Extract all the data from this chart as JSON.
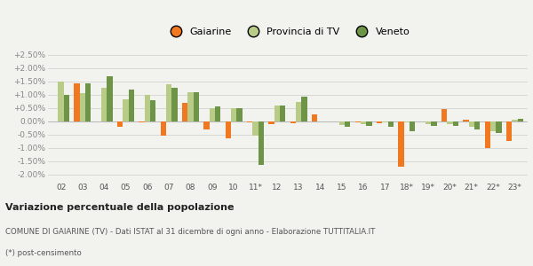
{
  "categories": [
    "02",
    "03",
    "04",
    "05",
    "06",
    "07",
    "08",
    "09",
    "10",
    "11*",
    "12",
    "13",
    "14",
    "15",
    "16",
    "17",
    "18*",
    "19*",
    "20*",
    "21*",
    "22*",
    "23*"
  ],
  "gaiarine": [
    -0.02,
    1.43,
    0.0,
    -0.22,
    -0.05,
    -0.55,
    0.68,
    -0.3,
    -0.65,
    -0.05,
    -0.1,
    -0.08,
    0.25,
    -0.02,
    -0.05,
    -0.08,
    -1.72,
    0.0,
    0.45,
    0.05,
    -1.02,
    -0.75
  ],
  "provincia": [
    1.5,
    1.05,
    1.25,
    0.83,
    0.97,
    1.4,
    1.08,
    0.5,
    0.5,
    -0.55,
    0.58,
    0.72,
    -0.02,
    -0.15,
    -0.1,
    -0.05,
    -0.05,
    -0.12,
    -0.1,
    -0.22,
    -0.38,
    0.05
  ],
  "veneto": [
    1.0,
    1.42,
    1.7,
    1.2,
    0.78,
    1.25,
    1.1,
    0.55,
    0.5,
    -1.65,
    0.6,
    0.93,
    0.0,
    -0.2,
    -0.18,
    -0.2,
    -0.38,
    -0.18,
    -0.18,
    -0.3,
    -0.45,
    0.08
  ],
  "color_gaiarine": "#f07820",
  "color_provincia": "#b8cc88",
  "color_veneto": "#6e9448",
  "title_bold": "Variazione percentuale della popolazione",
  "subtitle": "COMUNE DI GAIARINE (TV) - Dati ISTAT al 31 dicembre di ogni anno - Elaborazione TUTTITALIA.IT",
  "footnote": "(*) post-censimento",
  "bg_color": "#f2f2ee",
  "ylim_min": -2.25,
  "ylim_max": 2.75,
  "yticks": [
    -2.0,
    -1.5,
    -1.0,
    -0.5,
    0.0,
    0.5,
    1.0,
    1.5,
    2.0,
    2.5
  ]
}
